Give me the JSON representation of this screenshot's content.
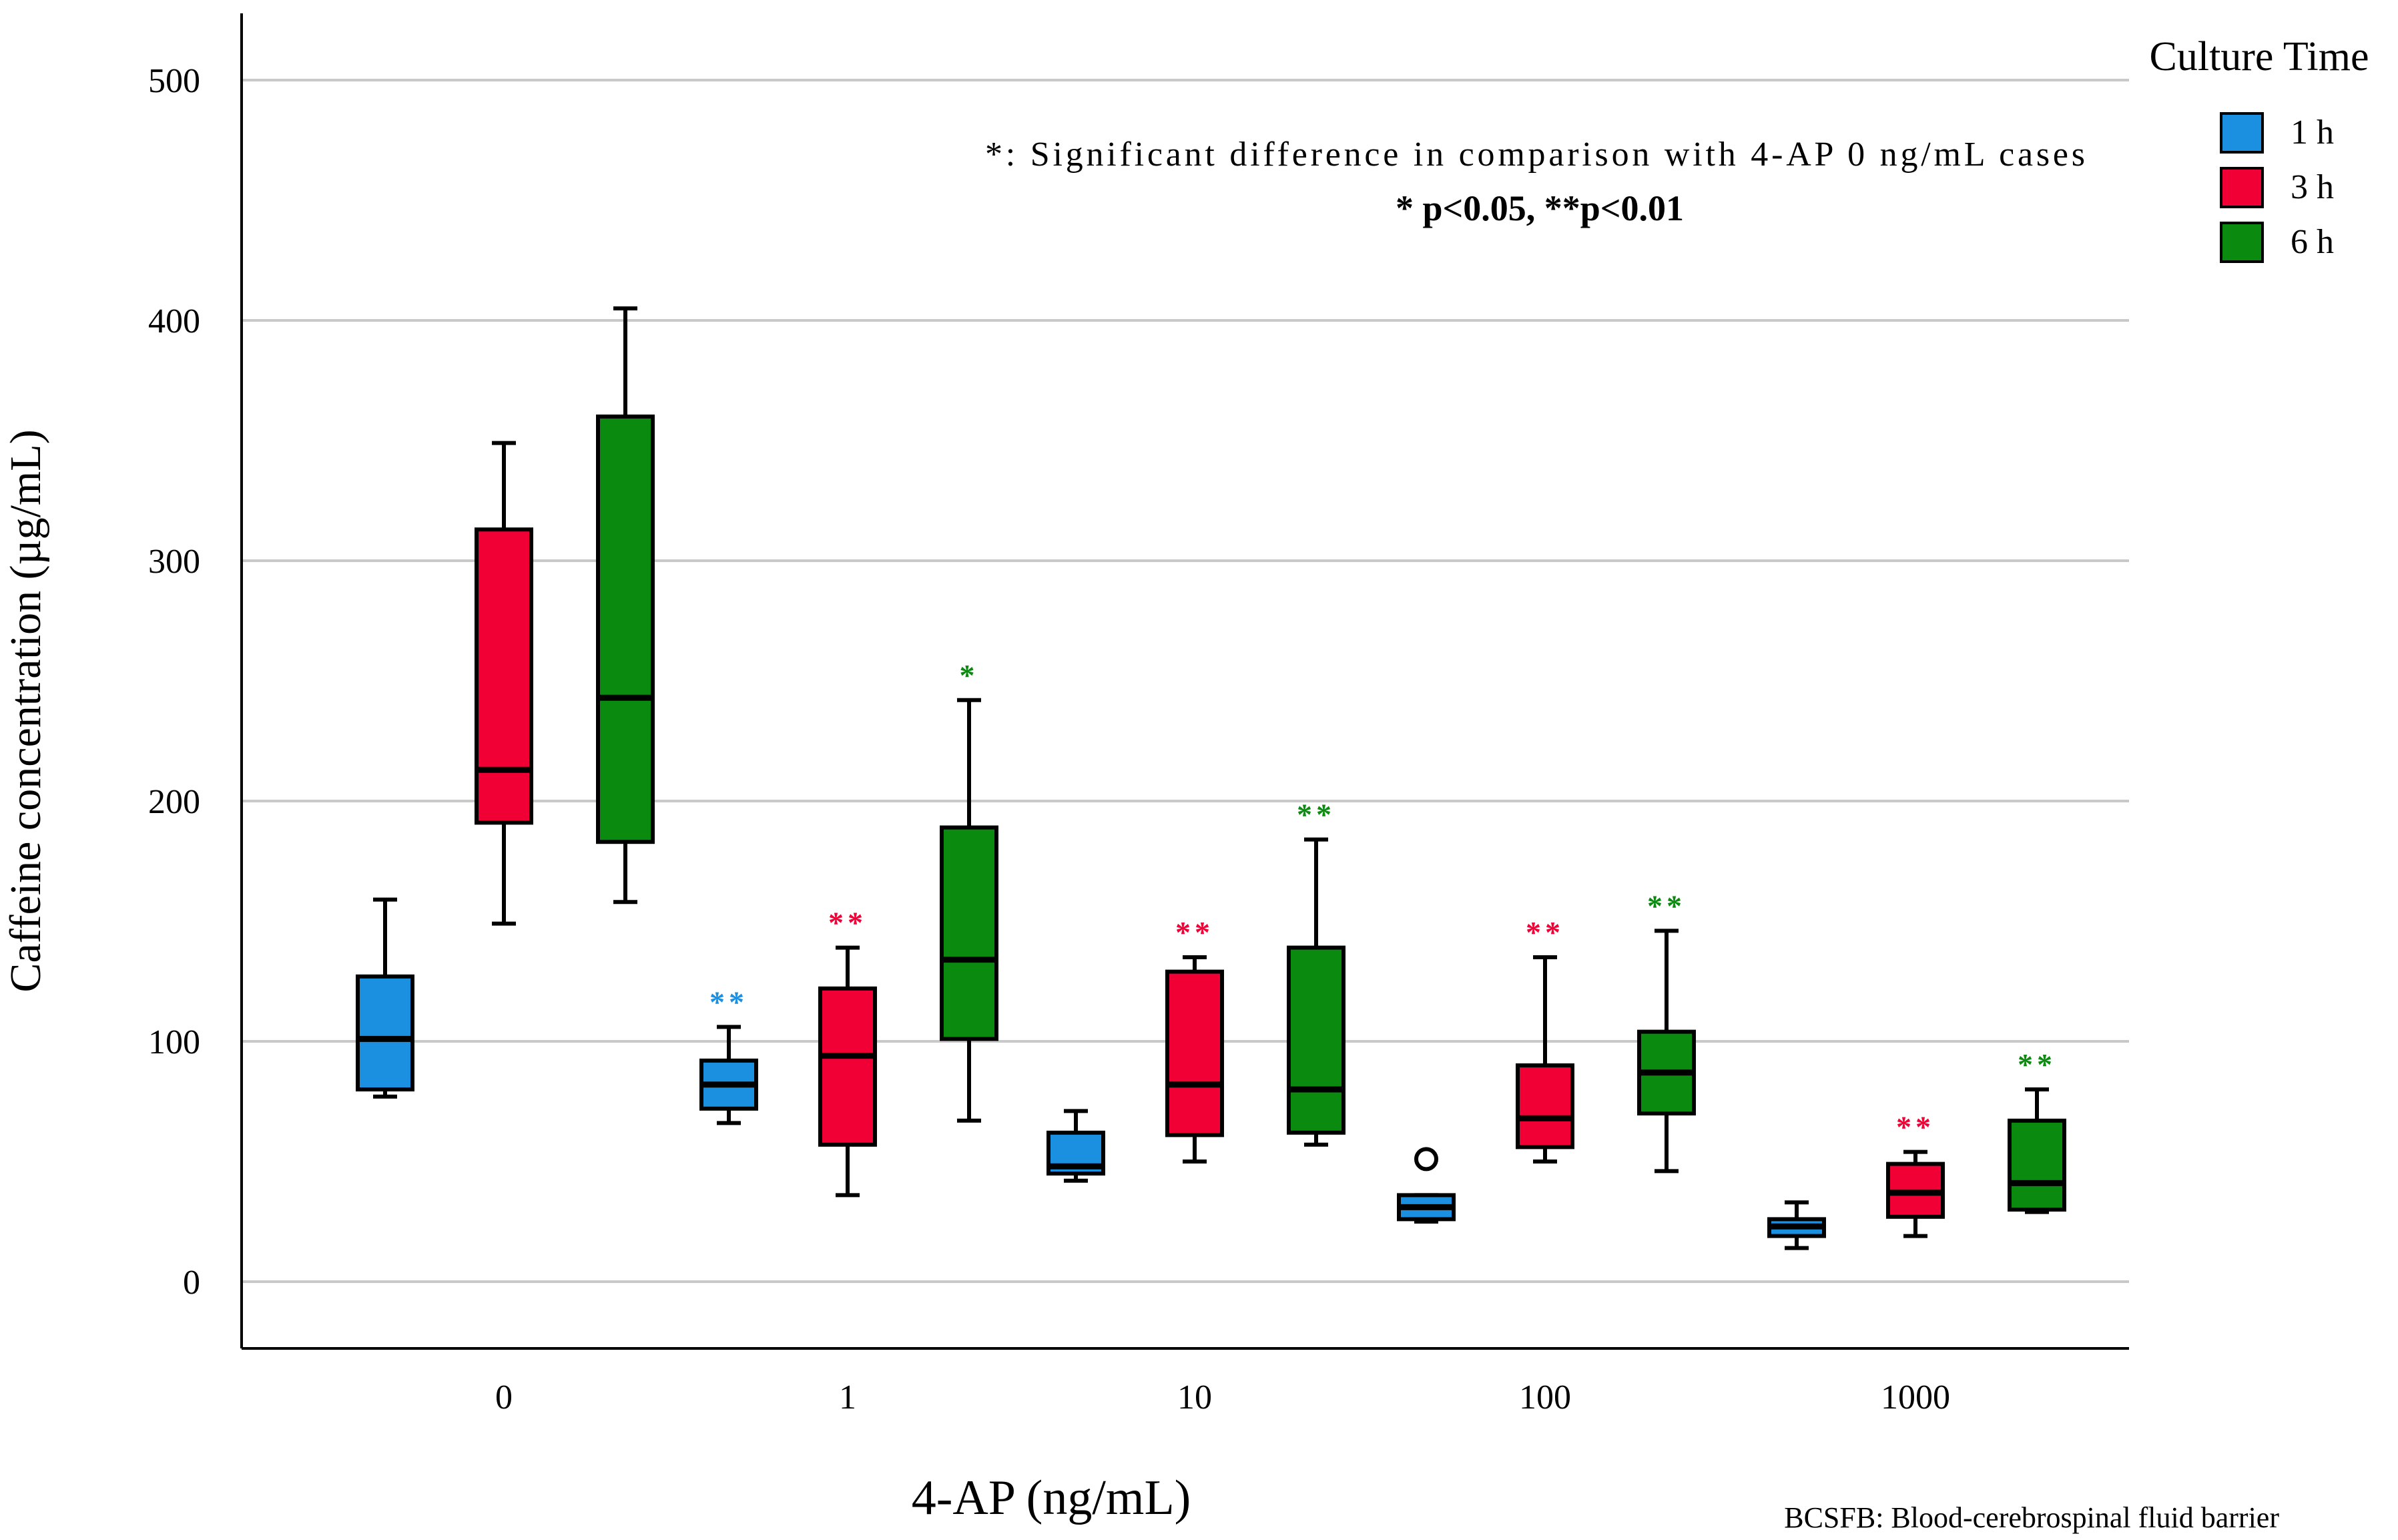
{
  "chart_data": {
    "type": "boxplot",
    "ylabel": "Caffeine concentration (µg/mL)",
    "xlabel": "4-AP (ng/mL)",
    "y_ticks": [
      "0",
      "100",
      "200",
      "300",
      "400",
      "500"
    ],
    "ylim": [
      -25,
      525
    ],
    "grid": true,
    "categories": [
      "0",
      "1",
      "10",
      "100",
      "1000"
    ],
    "legend": {
      "title": "Culture Time",
      "position": "top-right",
      "entries": [
        "1 h",
        "3 h",
        "6 h"
      ]
    },
    "series": [
      {
        "name": "1 h",
        "color": "#1b8fe0",
        "boxes": [
          {
            "category": "0",
            "min": 77,
            "q1": 80,
            "median": 101,
            "q3": 127,
            "max": 159,
            "sig": ""
          },
          {
            "category": "1",
            "min": 66,
            "q1": 72,
            "median": 82,
            "q3": 92,
            "max": 106,
            "sig": "**"
          },
          {
            "category": "10",
            "min": 42,
            "q1": 45,
            "median": 48,
            "q3": 62,
            "max": 71,
            "sig": ""
          },
          {
            "category": "100",
            "min": 25,
            "q1": 26,
            "median": 31,
            "q3": 36,
            "max": 36,
            "sig": "",
            "outliers": [
              51
            ]
          },
          {
            "category": "1000",
            "min": 14,
            "q1": 19,
            "median": 23,
            "q3": 26,
            "max": 33,
            "sig": ""
          }
        ]
      },
      {
        "name": "3 h",
        "color": "#f00035",
        "boxes": [
          {
            "category": "0",
            "min": 149,
            "q1": 191,
            "median": 213,
            "q3": 313,
            "max": 349,
            "sig": ""
          },
          {
            "category": "1",
            "min": 36,
            "q1": 57,
            "median": 94,
            "q3": 122,
            "max": 139,
            "sig": "**"
          },
          {
            "category": "10",
            "min": 50,
            "q1": 61,
            "median": 82,
            "q3": 129,
            "max": 135,
            "sig": "**"
          },
          {
            "category": "100",
            "min": 50,
            "q1": 56,
            "median": 68,
            "q3": 90,
            "max": 135,
            "sig": "**"
          },
          {
            "category": "1000",
            "min": 19,
            "q1": 27,
            "median": 37,
            "q3": 49,
            "max": 54,
            "sig": "**"
          }
        ]
      },
      {
        "name": "6 h",
        "color": "#0b8a10",
        "boxes": [
          {
            "category": "0",
            "min": 158,
            "q1": 183,
            "median": 243,
            "q3": 360,
            "max": 405,
            "sig": ""
          },
          {
            "category": "1",
            "min": 67,
            "q1": 101,
            "median": 134,
            "q3": 189,
            "max": 242,
            "sig": "*"
          },
          {
            "category": "10",
            "min": 57,
            "q1": 62,
            "median": 80,
            "q3": 139,
            "max": 184,
            "sig": "**"
          },
          {
            "category": "100",
            "min": 46,
            "q1": 70,
            "median": 87,
            "q3": 104,
            "max": 146,
            "sig": "**"
          },
          {
            "category": "1000",
            "min": 29,
            "q1": 30,
            "median": 41,
            "q3": 67,
            "max": 80,
            "sig": "**"
          }
        ]
      }
    ],
    "annotations": {
      "significance_note": "*: Significant difference in comparison with 4-AP 0 ng/mL cases",
      "p_values": "* p<0.05, **p<0.01",
      "footnote": "BCSFB: Blood-cerebrospinal fluid barrier"
    }
  }
}
